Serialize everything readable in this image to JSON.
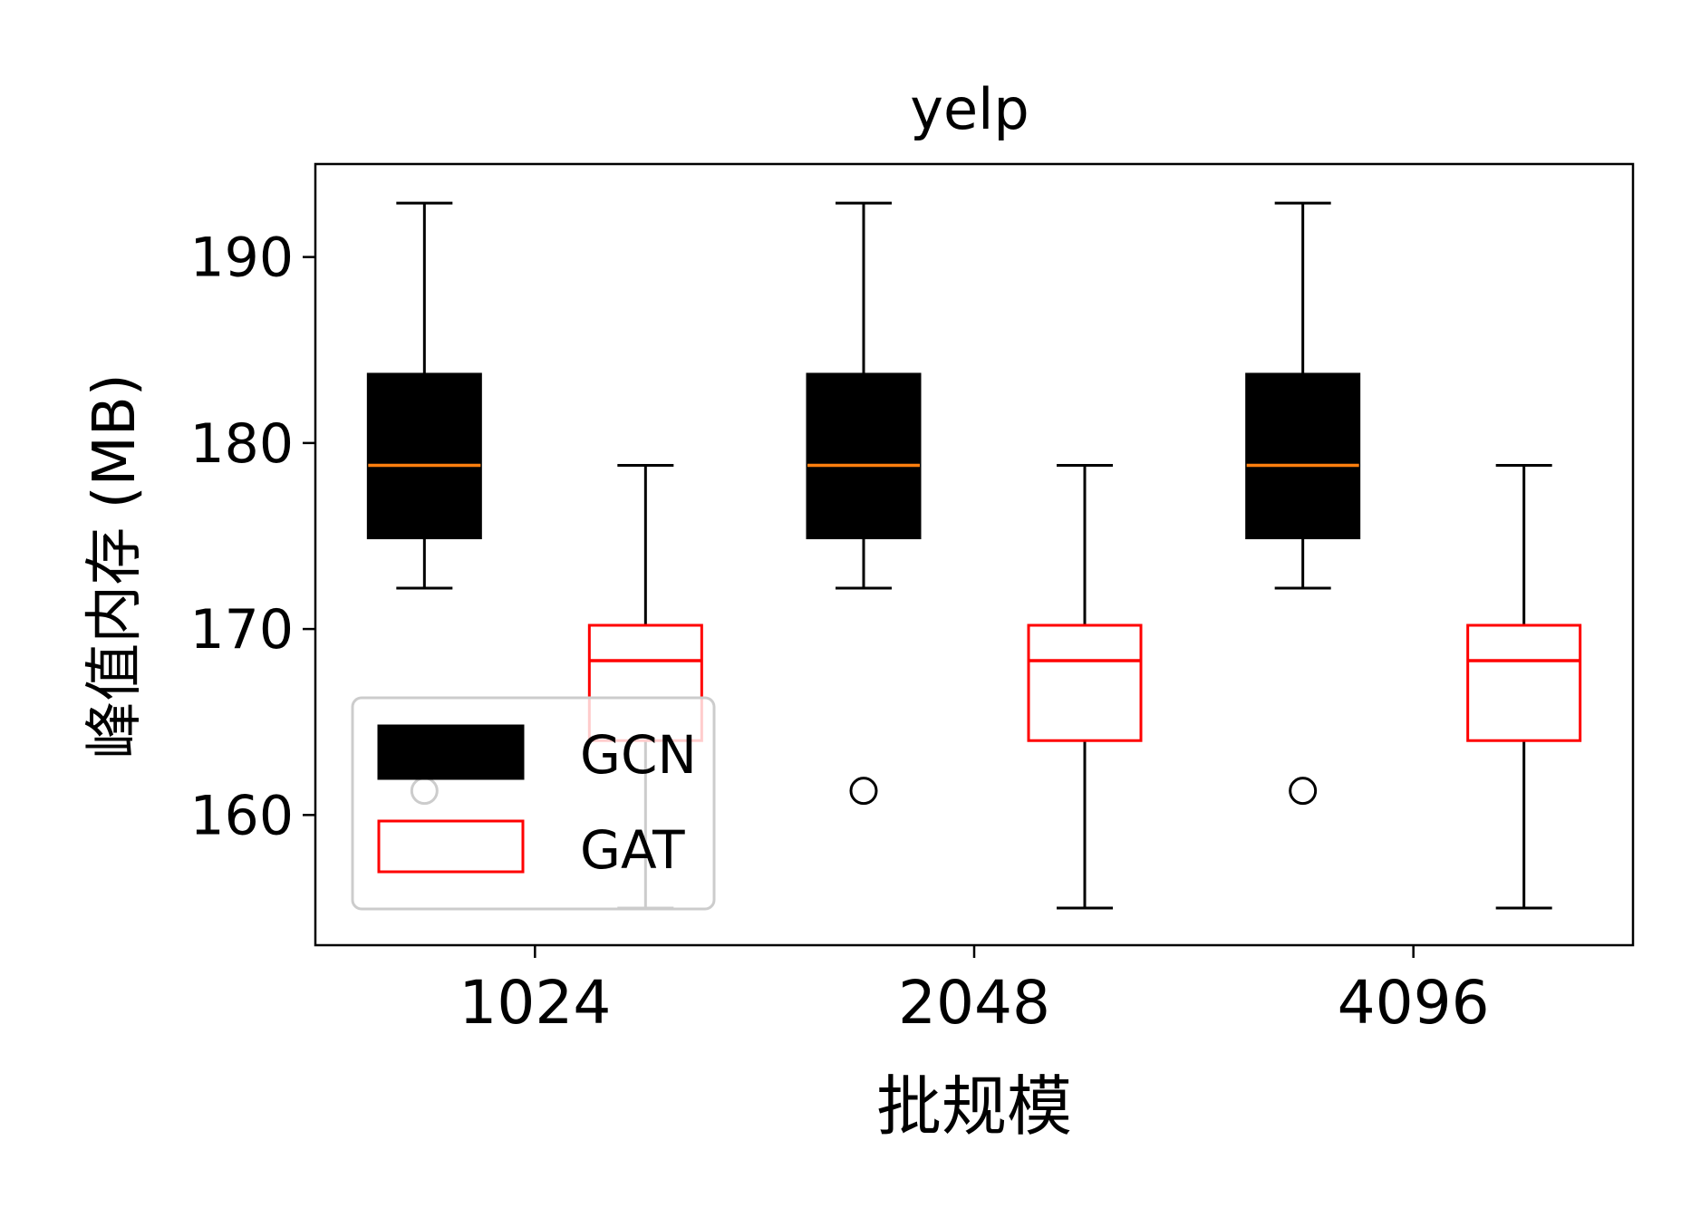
{
  "chart_data": {
    "type": "box",
    "title": "yelp",
    "xlabel": "批规模",
    "ylabel": "峰值内存 (MB)",
    "categories": [
      "1024",
      "2048",
      "4096"
    ],
    "ylim": [
      153,
      195
    ],
    "yticks": [
      160,
      170,
      180,
      190
    ],
    "grid": false,
    "legend_position": "lower-left",
    "series": [
      {
        "name": "GCN",
        "fill": "#000000",
        "edge": "#000000",
        "median_color": "#ff7f0e",
        "boxes": [
          {
            "whislo": 172.2,
            "q1": 174.9,
            "med": 178.8,
            "q3": 183.7,
            "whishi": 192.9,
            "fliers": [
              161.3
            ]
          },
          {
            "whislo": 172.2,
            "q1": 174.9,
            "med": 178.8,
            "q3": 183.7,
            "whishi": 192.9,
            "fliers": [
              161.3
            ]
          },
          {
            "whislo": 172.2,
            "q1": 174.9,
            "med": 178.8,
            "q3": 183.7,
            "whishi": 192.9,
            "fliers": [
              161.3
            ]
          }
        ]
      },
      {
        "name": "GAT",
        "fill": "#ffffff",
        "edge": "#ff0000",
        "median_color": "#ff0000",
        "boxes": [
          {
            "whislo": 155.0,
            "q1": 164.0,
            "med": 168.3,
            "q3": 170.2,
            "whishi": 178.8,
            "fliers": []
          },
          {
            "whislo": 155.0,
            "q1": 164.0,
            "med": 168.3,
            "q3": 170.2,
            "whishi": 178.8,
            "fliers": []
          },
          {
            "whislo": 155.0,
            "q1": 164.0,
            "med": 168.3,
            "q3": 170.2,
            "whishi": 178.8,
            "fliers": []
          }
        ]
      }
    ]
  }
}
